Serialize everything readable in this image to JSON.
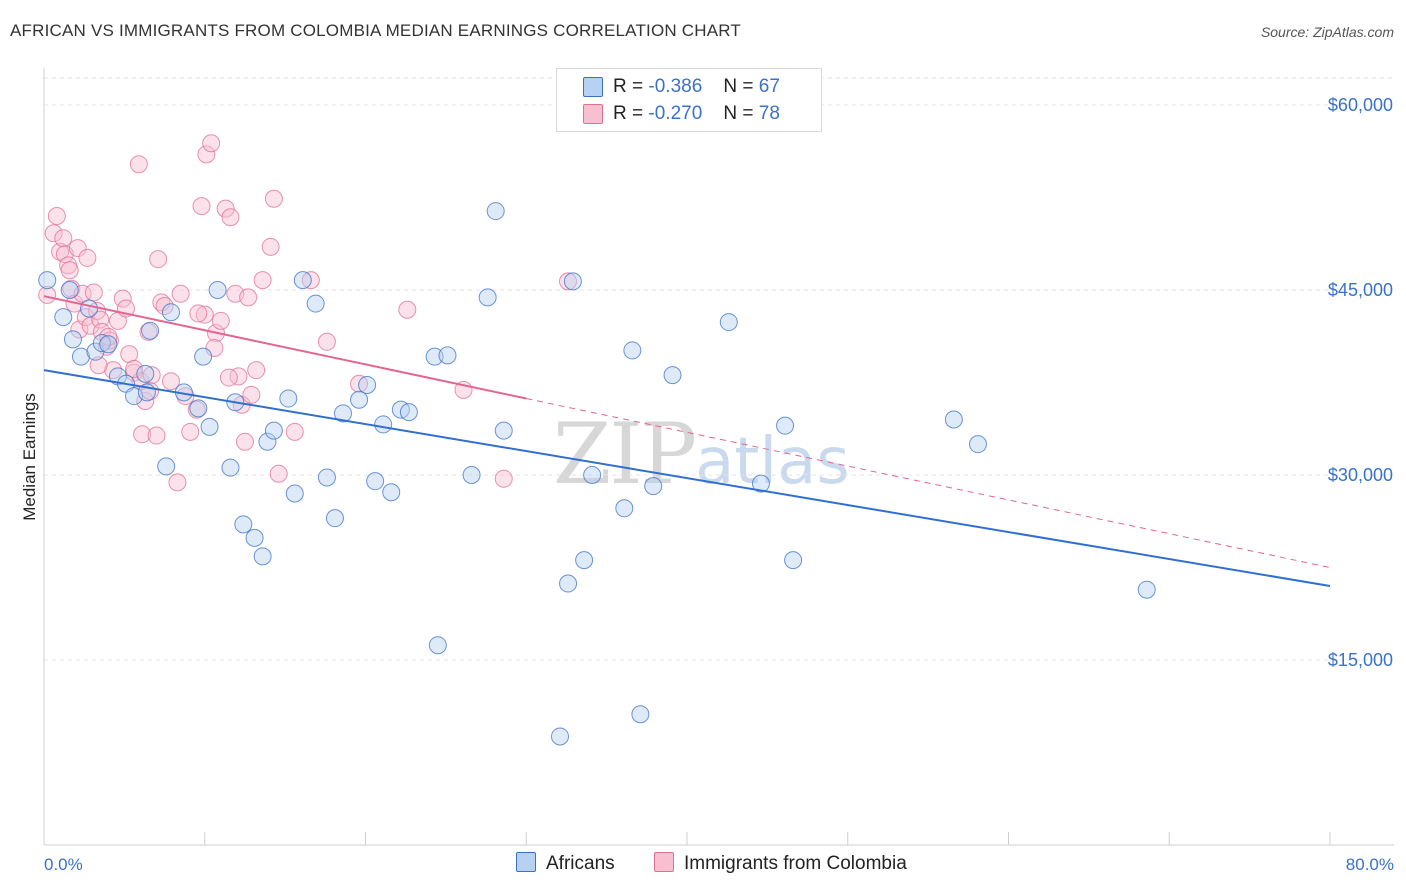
{
  "header": {
    "title": "AFRICAN VS IMMIGRANTS FROM COLOMBIA MEDIAN EARNINGS CORRELATION CHART",
    "source": "Source: ZipAtlas.com"
  },
  "watermark": {
    "zip": "ZIP",
    "atlas": "atlas"
  },
  "colors": {
    "blue_fill": "#b8d0f2",
    "blue_stroke": "#3a72c8",
    "blue_line": "#2f6fd0",
    "pink_fill": "#f7bfd0",
    "pink_stroke": "#e06f94",
    "pink_line": "#e36591",
    "grid": "#e3e3e3",
    "axis_text": "#3a72c8"
  },
  "legend_top": {
    "rows": [
      {
        "r_label": "R =",
        "r_value": "-0.386",
        "n_label": "N =",
        "n_value": "67",
        "series": "Africans"
      },
      {
        "r_label": "R =",
        "r_value": "-0.270",
        "n_label": "N =",
        "n_value": "78",
        "series": "Immigrants from Colombia"
      }
    ]
  },
  "legend_bottom": {
    "items": [
      "Africans",
      "Immigrants from Colombia"
    ]
  },
  "chart_data": {
    "type": "scatter",
    "title": "AFRICAN VS IMMIGRANTS FROM COLOMBIA MEDIAN EARNINGS CORRELATION CHART",
    "xlabel": "",
    "ylabel": "Median Earnings",
    "xlim": [
      0,
      80
    ],
    "ylim": [
      0,
      63000
    ],
    "x_tick_labels": [
      "0.0%",
      "80.0%"
    ],
    "y_ticks": [
      15000,
      30000,
      45000,
      60000
    ],
    "y_tick_labels": [
      "$15,000",
      "$30,000",
      "$45,000",
      "$60,000"
    ],
    "grid": true,
    "series": [
      {
        "name": "Africans",
        "r": -0.386,
        "n": 67,
        "trend": {
          "x0": 0,
          "y0": 38500,
          "x1": 80,
          "y1": 21000
        },
        "points": [
          [
            0.2,
            45800
          ],
          [
            1.2,
            42800
          ],
          [
            1.8,
            41000
          ],
          [
            2.3,
            39600
          ],
          [
            3.2,
            40000
          ],
          [
            3.6,
            40700
          ],
          [
            4.6,
            38000
          ],
          [
            5.1,
            37400
          ],
          [
            5.6,
            36400
          ],
          [
            6.4,
            36700
          ],
          [
            6.6,
            41700
          ],
          [
            7.6,
            30700
          ],
          [
            7.9,
            43200
          ],
          [
            8.7,
            36700
          ],
          [
            9.6,
            35400
          ],
          [
            9.9,
            39600
          ],
          [
            10.3,
            33900
          ],
          [
            10.8,
            45000
          ],
          [
            11.6,
            30600
          ],
          [
            11.9,
            35900
          ],
          [
            12.4,
            26000
          ],
          [
            13.1,
            24900
          ],
          [
            13.6,
            23400
          ],
          [
            13.9,
            32700
          ],
          [
            14.3,
            33600
          ],
          [
            15.2,
            36200
          ],
          [
            15.6,
            28500
          ],
          [
            16.1,
            45800
          ],
          [
            16.9,
            43900
          ],
          [
            17.6,
            29800
          ],
          [
            18.1,
            26500
          ],
          [
            18.6,
            35000
          ],
          [
            19.6,
            36100
          ],
          [
            20.1,
            37300
          ],
          [
            20.6,
            29500
          ],
          [
            21.1,
            34100
          ],
          [
            21.6,
            28600
          ],
          [
            22.2,
            35300
          ],
          [
            22.7,
            35100
          ],
          [
            24.3,
            39600
          ],
          [
            24.5,
            16200
          ],
          [
            25.1,
            39700
          ],
          [
            26.6,
            30000
          ],
          [
            27.6,
            44400
          ],
          [
            28.1,
            51400
          ],
          [
            28.6,
            33600
          ],
          [
            32.1,
            8800
          ],
          [
            32.6,
            21200
          ],
          [
            32.9,
            45700
          ],
          [
            33.6,
            23100
          ],
          [
            34.1,
            30000
          ],
          [
            36.1,
            27300
          ],
          [
            36.6,
            40100
          ],
          [
            37.1,
            10600
          ],
          [
            37.9,
            29100
          ],
          [
            39.1,
            38100
          ],
          [
            42.6,
            42400
          ],
          [
            44.6,
            29300
          ],
          [
            46.1,
            34000
          ],
          [
            46.6,
            23100
          ],
          [
            56.6,
            34500
          ],
          [
            58.1,
            32500
          ],
          [
            68.6,
            20700
          ],
          [
            1.6,
            45000
          ],
          [
            6.3,
            38200
          ],
          [
            4.0,
            40600
          ],
          [
            2.8,
            43500
          ]
        ]
      },
      {
        "name": "Immigrants from Colombia",
        "r": -0.27,
        "n": 78,
        "trend": {
          "x0": 0,
          "y0": 44500,
          "x1": 30,
          "y1": 36200
        },
        "trend_dashed": {
          "x0": 30,
          "y0": 36200,
          "x1": 80,
          "y1": 22500
        },
        "points": [
          [
            0.2,
            44600
          ],
          [
            0.6,
            49600
          ],
          [
            0.8,
            51000
          ],
          [
            1.0,
            48100
          ],
          [
            1.2,
            49200
          ],
          [
            1.3,
            47900
          ],
          [
            1.5,
            47000
          ],
          [
            1.6,
            46600
          ],
          [
            1.7,
            45100
          ],
          [
            1.9,
            43900
          ],
          [
            2.1,
            48400
          ],
          [
            2.2,
            41800
          ],
          [
            2.4,
            44700
          ],
          [
            2.6,
            42800
          ],
          [
            2.7,
            47600
          ],
          [
            2.9,
            42100
          ],
          [
            3.1,
            44800
          ],
          [
            3.3,
            43300
          ],
          [
            3.5,
            42600
          ],
          [
            3.6,
            41600
          ],
          [
            3.9,
            40400
          ],
          [
            4.1,
            40900
          ],
          [
            4.3,
            38500
          ],
          [
            4.6,
            42500
          ],
          [
            4.9,
            44300
          ],
          [
            5.1,
            43500
          ],
          [
            5.3,
            39800
          ],
          [
            5.6,
            38300
          ],
          [
            5.9,
            55200
          ],
          [
            6.0,
            37600
          ],
          [
            6.1,
            33300
          ],
          [
            6.3,
            36000
          ],
          [
            6.5,
            41600
          ],
          [
            6.7,
            38100
          ],
          [
            7.1,
            47500
          ],
          [
            7.3,
            44000
          ],
          [
            7.5,
            43700
          ],
          [
            7.9,
            37600
          ],
          [
            8.3,
            29400
          ],
          [
            8.5,
            44700
          ],
          [
            8.8,
            36400
          ],
          [
            9.1,
            33500
          ],
          [
            9.5,
            35300
          ],
          [
            9.8,
            51800
          ],
          [
            10.0,
            43000
          ],
          [
            10.1,
            56000
          ],
          [
            10.4,
            56900
          ],
          [
            10.7,
            41500
          ],
          [
            11.0,
            42500
          ],
          [
            11.3,
            51600
          ],
          [
            11.6,
            50900
          ],
          [
            11.9,
            44700
          ],
          [
            12.1,
            38000
          ],
          [
            12.3,
            35700
          ],
          [
            12.5,
            32700
          ],
          [
            12.9,
            36500
          ],
          [
            13.2,
            38500
          ],
          [
            13.6,
            45800
          ],
          [
            14.1,
            48500
          ],
          [
            14.3,
            52400
          ],
          [
            14.6,
            30100
          ],
          [
            15.6,
            33500
          ],
          [
            16.6,
            45800
          ],
          [
            17.6,
            40800
          ],
          [
            19.6,
            37400
          ],
          [
            22.6,
            43400
          ],
          [
            26.1,
            36900
          ],
          [
            28.6,
            29700
          ],
          [
            32.6,
            45700
          ],
          [
            6.6,
            36800
          ],
          [
            7.0,
            33200
          ],
          [
            10.6,
            40300
          ],
          [
            12.7,
            44400
          ],
          [
            5.6,
            38600
          ],
          [
            3.4,
            38900
          ],
          [
            9.6,
            43100
          ],
          [
            11.5,
            37900
          ],
          [
            4.0,
            41200
          ]
        ]
      }
    ]
  }
}
